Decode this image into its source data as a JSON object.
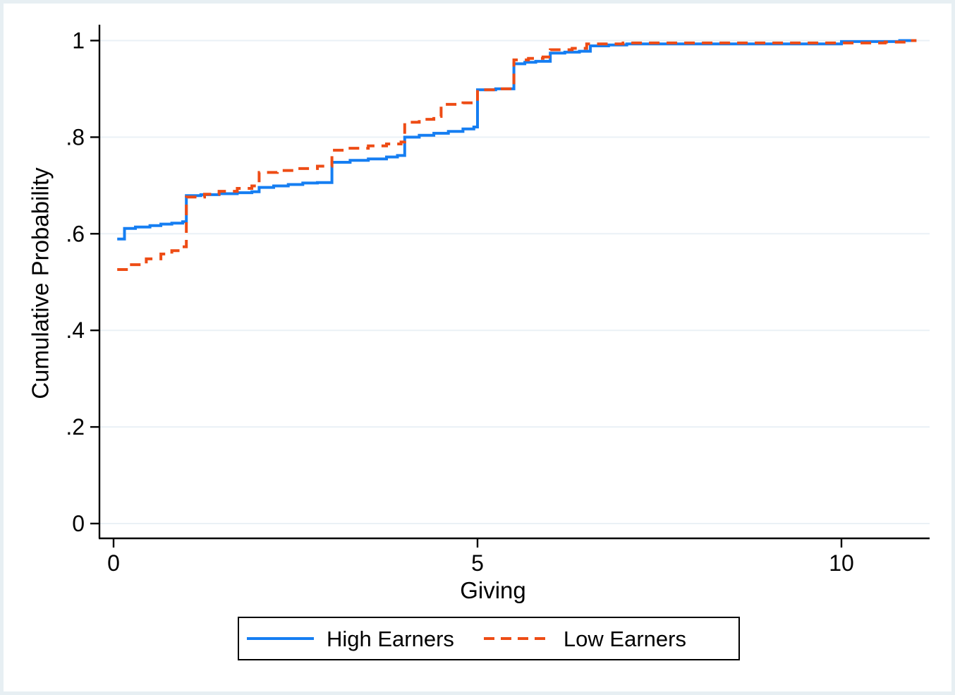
{
  "figure": {
    "background_color": "#ffffff",
    "canvas_border_color": "#e7eff3"
  },
  "chart_data": {
    "type": "line",
    "subtype": "step-cdf",
    "title": "",
    "xlabel": "Giving",
    "ylabel": "Cumulative Probability",
    "xlim": [
      -0.2,
      11.4
    ],
    "ylim": [
      -0.03,
      1.03
    ],
    "x_ticks": [
      0,
      5,
      10
    ],
    "x_tick_labels": [
      "0",
      "5",
      "10"
    ],
    "y_ticks": [
      0,
      0.2,
      0.4,
      0.6,
      0.8,
      1
    ],
    "y_tick_labels": [
      "0",
      ".2",
      ".4",
      ".6",
      ".8",
      "1"
    ],
    "grid": "horizontal",
    "gridline_color": "#eaf1f6",
    "axis_color": "#000000",
    "legend_position": "bottom-center",
    "series": [
      {
        "name": "High Earners",
        "color": "#157ef2",
        "style": "solid",
        "points": [
          [
            0.05,
            0.589
          ],
          [
            0.15,
            0.611
          ],
          [
            0.3,
            0.614
          ],
          [
            0.5,
            0.617
          ],
          [
            0.65,
            0.62
          ],
          [
            0.8,
            0.622
          ],
          [
            0.95,
            0.625
          ],
          [
            1.0,
            0.679
          ],
          [
            1.2,
            0.681
          ],
          [
            1.45,
            0.683
          ],
          [
            1.7,
            0.685
          ],
          [
            1.9,
            0.687
          ],
          [
            2.0,
            0.696
          ],
          [
            2.2,
            0.699
          ],
          [
            2.4,
            0.702
          ],
          [
            2.6,
            0.705
          ],
          [
            2.8,
            0.706
          ],
          [
            3.0,
            0.748
          ],
          [
            3.25,
            0.752
          ],
          [
            3.5,
            0.755
          ],
          [
            3.75,
            0.759
          ],
          [
            3.9,
            0.762
          ],
          [
            4.0,
            0.8
          ],
          [
            4.2,
            0.804
          ],
          [
            4.4,
            0.808
          ],
          [
            4.6,
            0.812
          ],
          [
            4.8,
            0.817
          ],
          [
            4.95,
            0.821
          ],
          [
            5.0,
            0.898
          ],
          [
            5.25,
            0.9
          ],
          [
            5.5,
            0.952
          ],
          [
            5.65,
            0.955
          ],
          [
            5.8,
            0.957
          ],
          [
            6.0,
            0.974
          ],
          [
            6.2,
            0.976
          ],
          [
            6.4,
            0.978
          ],
          [
            6.55,
            0.989
          ],
          [
            6.8,
            0.991
          ],
          [
            7.05,
            0.993
          ],
          [
            10.0,
            0.998
          ],
          [
            10.8,
            1.0
          ],
          [
            11.03,
            1.0
          ]
        ]
      },
      {
        "name": "Low Earners",
        "color": "#ee4c15",
        "style": "dashed",
        "points": [
          [
            0.05,
            0.526
          ],
          [
            0.2,
            0.536
          ],
          [
            0.45,
            0.548
          ],
          [
            0.65,
            0.558
          ],
          [
            0.8,
            0.565
          ],
          [
            0.92,
            0.573
          ],
          [
            1.0,
            0.676
          ],
          [
            1.25,
            0.682
          ],
          [
            1.45,
            0.688
          ],
          [
            1.7,
            0.694
          ],
          [
            1.9,
            0.699
          ],
          [
            2.0,
            0.727
          ],
          [
            2.25,
            0.731
          ],
          [
            2.5,
            0.735
          ],
          [
            2.8,
            0.74
          ],
          [
            3.0,
            0.773
          ],
          [
            3.2,
            0.777
          ],
          [
            3.5,
            0.782
          ],
          [
            3.75,
            0.786
          ],
          [
            3.95,
            0.79
          ],
          [
            4.0,
            0.831
          ],
          [
            4.2,
            0.837
          ],
          [
            4.4,
            0.843
          ],
          [
            4.5,
            0.868
          ],
          [
            4.8,
            0.871
          ],
          [
            5.0,
            0.898
          ],
          [
            5.25,
            0.9
          ],
          [
            5.5,
            0.96
          ],
          [
            5.7,
            0.963
          ],
          [
            5.9,
            0.966
          ],
          [
            6.0,
            0.981
          ],
          [
            6.3,
            0.984
          ],
          [
            6.5,
            0.993
          ],
          [
            7.0,
            0.995
          ],
          [
            10.6,
            0.997
          ],
          [
            10.95,
            1.0
          ],
          [
            11.03,
            1.0
          ]
        ]
      }
    ]
  },
  "legend": {
    "items": [
      {
        "label": "High Earners"
      },
      {
        "label": "Low Earners"
      }
    ]
  }
}
